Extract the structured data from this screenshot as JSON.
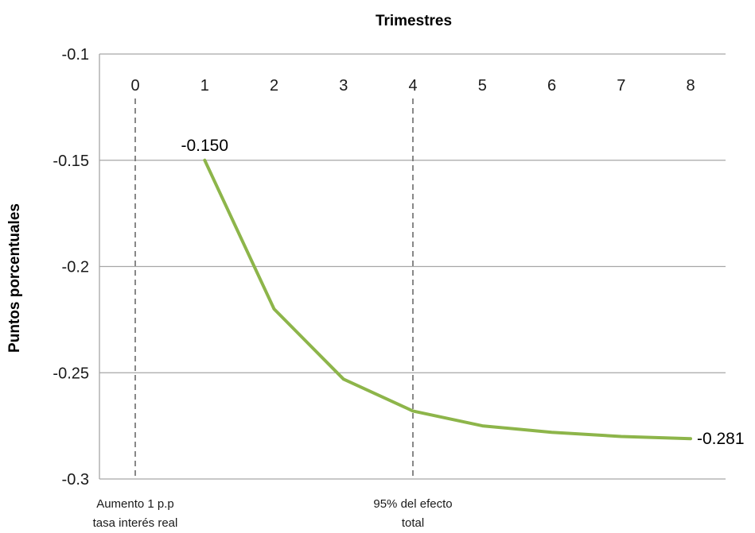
{
  "chart_data": {
    "type": "line",
    "xlabel": "Trimestres",
    "ylabel": "Puntos porcentuales",
    "x": [
      1,
      2,
      3,
      4,
      5,
      6,
      7,
      8
    ],
    "series": [
      {
        "values": [
          -0.15,
          -0.22,
          -0.253,
          -0.268,
          -0.275,
          -0.278,
          -0.28,
          -0.281
        ]
      }
    ],
    "xlim": [
      0,
      8
    ],
    "ylim": [
      -0.3,
      -0.1
    ],
    "x_ticks": [
      "0",
      "1",
      "2",
      "3",
      "4",
      "5",
      "6",
      "7",
      "8"
    ],
    "y_ticks": [
      "-0.1",
      "-0.15",
      "-0.2",
      "-0.25",
      "-0.3"
    ],
    "y_tick_values": [
      -0.1,
      -0.15,
      -0.2,
      -0.25,
      -0.3
    ],
    "grid": "horizontal",
    "x_axis_position": "top",
    "line_color": "#8db54a",
    "data_labels": [
      {
        "index": 0,
        "text": "-0.150"
      },
      {
        "index": 7,
        "text": "-0.281"
      }
    ],
    "reference_lines": [
      {
        "x": 0,
        "label_lines": [
          "Aumento 1 p.p",
          "tasa interés real"
        ]
      },
      {
        "x": 4,
        "label_lines": [
          "95% del efecto",
          "total"
        ]
      }
    ]
  }
}
